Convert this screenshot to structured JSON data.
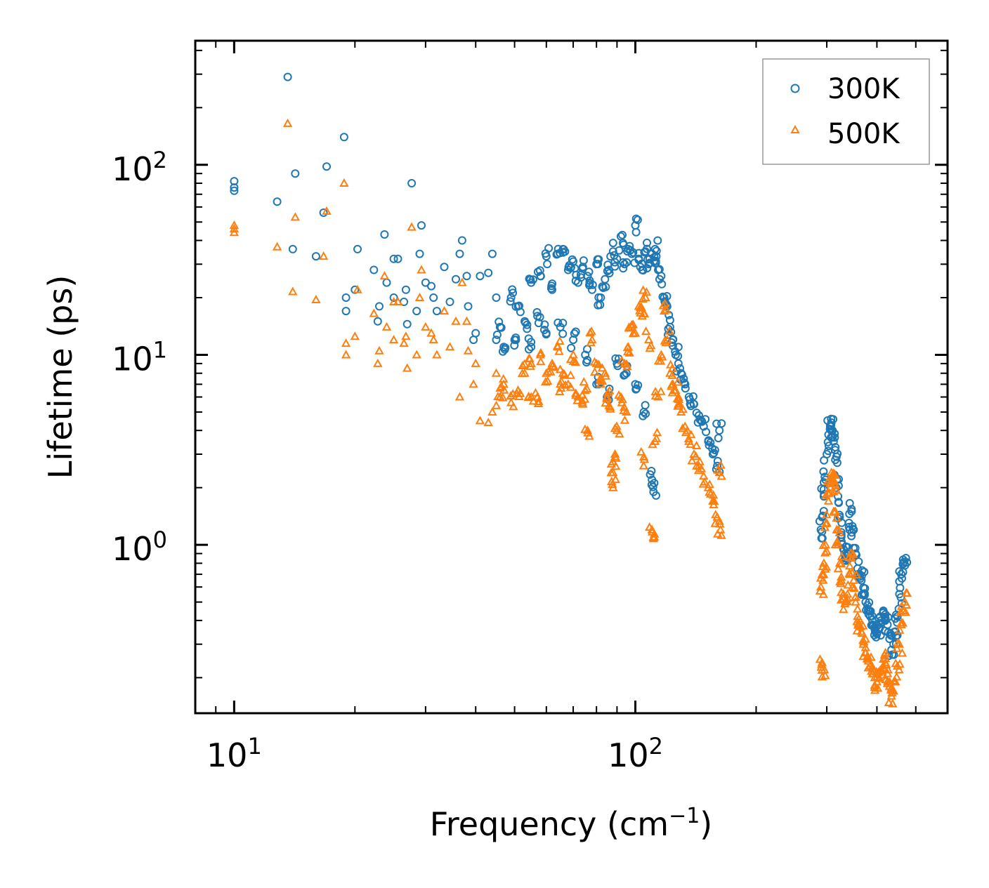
{
  "chart_data": {
    "type": "scatter",
    "xlabel": "Frequency (cm",
    "xlabel_sup": "−1",
    "xlabel_end": ")",
    "ylabel": "Lifetime (ps)",
    "xscale": "log",
    "yscale": "log",
    "xlim": [
      8,
      600
    ],
    "ylim": [
      0.13,
      450
    ],
    "x_ticks": [
      {
        "base": "10",
        "exp": "1",
        "value": 10
      },
      {
        "base": "10",
        "exp": "2",
        "value": 100
      }
    ],
    "y_ticks": [
      {
        "base": "10",
        "exp": "0",
        "value": 1
      },
      {
        "base": "10",
        "exp": "1",
        "value": 10
      },
      {
        "base": "10",
        "exp": "2",
        "value": 100
      }
    ],
    "legend_position": "top-right",
    "series": [
      {
        "name": "300K",
        "color": "#1f77b4",
        "marker": "circle",
        "points": [
          [
            10,
            82
          ],
          [
            10,
            76
          ],
          [
            10,
            73
          ],
          [
            12.8,
            64
          ],
          [
            13.6,
            290
          ],
          [
            14,
            36
          ],
          [
            14.2,
            90
          ],
          [
            16,
            33
          ],
          [
            16.7,
            56
          ],
          [
            17,
            98
          ],
          [
            18.8,
            140
          ],
          [
            19,
            20
          ],
          [
            19,
            17
          ],
          [
            20,
            22
          ],
          [
            20.3,
            36
          ],
          [
            22.3,
            28
          ],
          [
            22.8,
            15
          ],
          [
            23,
            18
          ],
          [
            23.7,
            43
          ],
          [
            24,
            24
          ],
          [
            25,
            32
          ],
          [
            25,
            20
          ],
          [
            25.6,
            32
          ],
          [
            26.5,
            19
          ],
          [
            26.8,
            22
          ],
          [
            27,
            14.5
          ],
          [
            27.7,
            80
          ],
          [
            28.5,
            17
          ],
          [
            29,
            34
          ],
          [
            29.3,
            48
          ],
          [
            30,
            24
          ],
          [
            31,
            23
          ],
          [
            31.4,
            20
          ],
          [
            32,
            17
          ],
          [
            33.4,
            29
          ],
          [
            34.5,
            19
          ],
          [
            35.7,
            25
          ],
          [
            36.5,
            34
          ],
          [
            37,
            40
          ],
          [
            38,
            26
          ],
          [
            38.3,
            18
          ],
          [
            39.5,
            12
          ],
          [
            41,
            26
          ],
          [
            43,
            27
          ],
          [
            44,
            34
          ],
          [
            45,
            20
          ],
          [
            46,
            14
          ],
          [
            47,
            11
          ],
          [
            49,
            20
          ],
          [
            51,
            18
          ],
          [
            53,
            15
          ],
          [
            55,
            24
          ],
          [
            57,
            16
          ],
          [
            58,
            26
          ],
          [
            60,
            33
          ],
          [
            62,
            22
          ],
          [
            64,
            34
          ],
          [
            66,
            36
          ],
          [
            68,
            28
          ],
          [
            70,
            31
          ],
          [
            72,
            24
          ],
          [
            74,
            29
          ],
          [
            76,
            26
          ],
          [
            78,
            22
          ],
          [
            80,
            30
          ],
          [
            82,
            20
          ],
          [
            84,
            25
          ],
          [
            86,
            28
          ],
          [
            88,
            35
          ],
          [
            90,
            32
          ],
          [
            92,
            42
          ],
          [
            94,
            30
          ],
          [
            96,
            36
          ],
          [
            98,
            34
          ],
          [
            100,
            48
          ],
          [
            102,
            32
          ],
          [
            104,
            28
          ],
          [
            106,
            35
          ],
          [
            108,
            30
          ],
          [
            110,
            34
          ],
          [
            112,
            36
          ],
          [
            114,
            28
          ],
          [
            116,
            26
          ],
          [
            118,
            20
          ],
          [
            120,
            18
          ],
          [
            122,
            14
          ],
          [
            124,
            12
          ],
          [
            126,
            10
          ],
          [
            128,
            9
          ],
          [
            130,
            8
          ],
          [
            133,
            7
          ],
          [
            136,
            6
          ],
          [
            140,
            5.5
          ],
          [
            144,
            4.8
          ],
          [
            148,
            4.2
          ],
          [
            152,
            3.5
          ],
          [
            156,
            3.0
          ],
          [
            160,
            2.6
          ],
          [
            162,
            4.0
          ],
          [
            110,
            2.2
          ],
          [
            111,
            1.9
          ],
          [
            105,
            5
          ],
          [
            100,
            7
          ],
          [
            95,
            8
          ],
          [
            90,
            9
          ],
          [
            85,
            6
          ],
          [
            80,
            7
          ],
          [
            75,
            10
          ],
          [
            70,
            12
          ],
          [
            65,
            14
          ],
          [
            60,
            13
          ],
          [
            55,
            11
          ],
          [
            50,
            12
          ],
          [
            45,
            12
          ],
          [
            40,
            13
          ],
          [
            290,
            1.2
          ],
          [
            292,
            1.4
          ],
          [
            295,
            1.8
          ],
          [
            298,
            2.2
          ],
          [
            300,
            3.0
          ],
          [
            303,
            3.8
          ],
          [
            306,
            4.2
          ],
          [
            308,
            4.4
          ],
          [
            310,
            4.0
          ],
          [
            312,
            3.5
          ],
          [
            315,
            2.8
          ],
          [
            318,
            2.2
          ],
          [
            320,
            1.8
          ],
          [
            323,
            1.4
          ],
          [
            326,
            1.1
          ],
          [
            330,
            0.95
          ],
          [
            334,
            0.85
          ],
          [
            338,
            0.9
          ],
          [
            342,
            1.2
          ],
          [
            346,
            1.5
          ],
          [
            350,
            1.2
          ],
          [
            354,
            0.9
          ],
          [
            358,
            0.75
          ],
          [
            362,
            0.7
          ],
          [
            366,
            0.65
          ],
          [
            370,
            0.55
          ],
          [
            375,
            0.5
          ],
          [
            380,
            0.45
          ],
          [
            385,
            0.42
          ],
          [
            390,
            0.38
          ],
          [
            395,
            0.36
          ],
          [
            400,
            0.34
          ],
          [
            405,
            0.36
          ],
          [
            410,
            0.4
          ],
          [
            415,
            0.45
          ],
          [
            420,
            0.43
          ],
          [
            425,
            0.38
          ],
          [
            430,
            0.32
          ],
          [
            435,
            0.28
          ],
          [
            440,
            0.3
          ],
          [
            445,
            0.35
          ],
          [
            450,
            0.42
          ],
          [
            455,
            0.55
          ],
          [
            460,
            0.7
          ],
          [
            465,
            0.8
          ],
          [
            470,
            0.78
          ]
        ]
      },
      {
        "name": "500K",
        "color": "#ff7f0e",
        "marker": "triangle",
        "points": [
          [
            10,
            48
          ],
          [
            10,
            46
          ],
          [
            10,
            44
          ],
          [
            12.8,
            37
          ],
          [
            13.6,
            165
          ],
          [
            14,
            21.5
          ],
          [
            14.2,
            53
          ],
          [
            16,
            19.5
          ],
          [
            16.7,
            33
          ],
          [
            17,
            57
          ],
          [
            18.8,
            80
          ],
          [
            19,
            11.5
          ],
          [
            19,
            10
          ],
          [
            20,
            12.5
          ],
          [
            20.3,
            22
          ],
          [
            22.3,
            16.5
          ],
          [
            22.8,
            9
          ],
          [
            23,
            10.5
          ],
          [
            23.7,
            26
          ],
          [
            24,
            14
          ],
          [
            25,
            19
          ],
          [
            25,
            12
          ],
          [
            25.6,
            19
          ],
          [
            26.5,
            11.5
          ],
          [
            26.8,
            12.5
          ],
          [
            27,
            8.5
          ],
          [
            27.7,
            47
          ],
          [
            28.5,
            10
          ],
          [
            29,
            20
          ],
          [
            29.3,
            28
          ],
          [
            30,
            14
          ],
          [
            31,
            13
          ],
          [
            31.4,
            12
          ],
          [
            32,
            10
          ],
          [
            33.4,
            17
          ],
          [
            34.5,
            11
          ],
          [
            35.7,
            15
          ],
          [
            36.5,
            6
          ],
          [
            37,
            24
          ],
          [
            38,
            15
          ],
          [
            38.3,
            10.5
          ],
          [
            39.5,
            7
          ],
          [
            41,
            4.5
          ],
          [
            43,
            4.4
          ],
          [
            44,
            5
          ],
          [
            45,
            5.4
          ],
          [
            46,
            6
          ],
          [
            47,
            7
          ],
          [
            49,
            5.6
          ],
          [
            51,
            6.5
          ],
          [
            53,
            8
          ],
          [
            55,
            9
          ],
          [
            57,
            6
          ],
          [
            58,
            10
          ],
          [
            60,
            8
          ],
          [
            62,
            9
          ],
          [
            64,
            11
          ],
          [
            66,
            8
          ],
          [
            68,
            7
          ],
          [
            70,
            10
          ],
          [
            72,
            6
          ],
          [
            74,
            5.5
          ],
          [
            76,
            4
          ],
          [
            78,
            12
          ],
          [
            80,
            9
          ],
          [
            82,
            7
          ],
          [
            84,
            8
          ],
          [
            86,
            5.4
          ],
          [
            88,
            2.0
          ],
          [
            88,
            2.4
          ],
          [
            89,
            3.0
          ],
          [
            90,
            4
          ],
          [
            92,
            6
          ],
          [
            94,
            9
          ],
          [
            96,
            11
          ],
          [
            98,
            14
          ],
          [
            100,
            13
          ],
          [
            102,
            18
          ],
          [
            104,
            16
          ],
          [
            106,
            20
          ],
          [
            108,
            12
          ],
          [
            110,
            1.2
          ],
          [
            111,
            1.1
          ],
          [
            112,
            3.5
          ],
          [
            114,
            6
          ],
          [
            116,
            10
          ],
          [
            118,
            17
          ],
          [
            120,
            12
          ],
          [
            122,
            8
          ],
          [
            124,
            7
          ],
          [
            126,
            6.5
          ],
          [
            128,
            5.5
          ],
          [
            130,
            5
          ],
          [
            133,
            4.2
          ],
          [
            136,
            3.5
          ],
          [
            140,
            3
          ],
          [
            144,
            2.6
          ],
          [
            148,
            2.3
          ],
          [
            152,
            2
          ],
          [
            156,
            1.7
          ],
          [
            160,
            1.4
          ],
          [
            162,
            2.4
          ],
          [
            163,
            1.2
          ],
          [
            105,
            2.9
          ],
          [
            95,
            5
          ],
          [
            85,
            6
          ],
          [
            75,
            6.5
          ],
          [
            65,
            7
          ],
          [
            55,
            6
          ],
          [
            45,
            8
          ],
          [
            40,
            9
          ],
          [
            290,
            0.6
          ],
          [
            292,
            0.7
          ],
          [
            295,
            0.8
          ],
          [
            298,
            1.0
          ],
          [
            300,
            1.3
          ],
          [
            303,
            1.7
          ],
          [
            306,
            2.1
          ],
          [
            308,
            2.4
          ],
          [
            310,
            2.2
          ],
          [
            312,
            1.9
          ],
          [
            315,
            1.5
          ],
          [
            318,
            1.2
          ],
          [
            320,
            1.0
          ],
          [
            323,
            0.8
          ],
          [
            326,
            0.65
          ],
          [
            330,
            0.55
          ],
          [
            334,
            0.5
          ],
          [
            338,
            0.55
          ],
          [
            342,
            0.7
          ],
          [
            346,
            0.85
          ],
          [
            350,
            0.65
          ],
          [
            354,
            0.5
          ],
          [
            358,
            0.42
          ],
          [
            362,
            0.38
          ],
          [
            366,
            0.35
          ],
          [
            370,
            0.3
          ],
          [
            375,
            0.27
          ],
          [
            380,
            0.25
          ],
          [
            385,
            0.23
          ],
          [
            390,
            0.21
          ],
          [
            395,
            0.2
          ],
          [
            400,
            0.19
          ],
          [
            405,
            0.2
          ],
          [
            410,
            0.22
          ],
          [
            415,
            0.25
          ],
          [
            420,
            0.24
          ],
          [
            425,
            0.21
          ],
          [
            430,
            0.18
          ],
          [
            435,
            0.16
          ],
          [
            440,
            0.17
          ],
          [
            445,
            0.19
          ],
          [
            450,
            0.23
          ],
          [
            455,
            0.3
          ],
          [
            460,
            0.38
          ],
          [
            465,
            0.45
          ],
          [
            470,
            0.5
          ],
          [
            292,
            0.24
          ],
          [
            296,
            0.22
          ]
        ]
      }
    ]
  }
}
